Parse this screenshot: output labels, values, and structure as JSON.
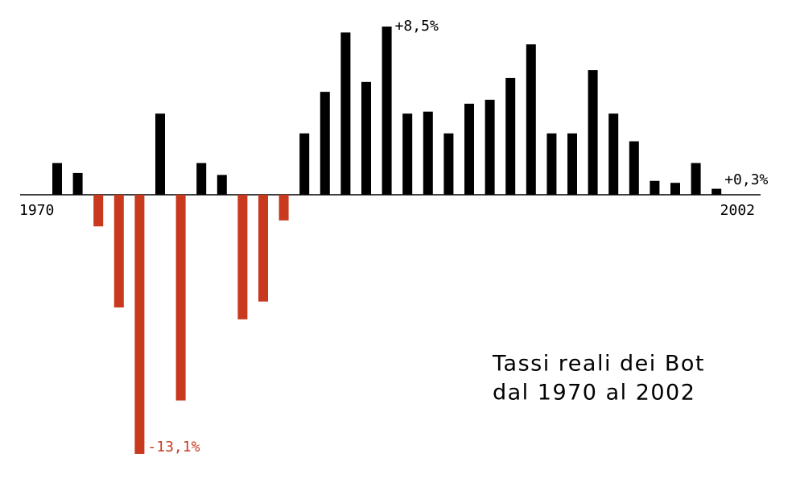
{
  "chart_data": {
    "type": "bar",
    "title": [
      "Tassi reali dei Bot",
      "dal 1970 al 2002"
    ],
    "categories": [
      "1970",
      null,
      null,
      null,
      null,
      null,
      null,
      null,
      null,
      null,
      null,
      null,
      null,
      null,
      null,
      null,
      null,
      null,
      null,
      null,
      null,
      null,
      null,
      null,
      null,
      null,
      null,
      null,
      null,
      null,
      null,
      null,
      "2002"
    ],
    "values": [
      1.6,
      1.1,
      -1.6,
      -5.7,
      -13.1,
      4.1,
      -10.4,
      1.6,
      1.0,
      -6.3,
      -5.4,
      -1.3,
      3.1,
      5.2,
      8.2,
      5.7,
      8.5,
      4.1,
      4.2,
      3.1,
      4.6,
      4.8,
      5.9,
      7.6,
      3.1,
      3.1,
      6.3,
      4.1,
      2.7,
      0.7,
      0.6,
      1.6,
      0.3
    ],
    "value_labels": [
      null,
      null,
      null,
      null,
      "-13,1%",
      null,
      null,
      null,
      null,
      null,
      null,
      null,
      null,
      null,
      null,
      null,
      "+8,5%",
      null,
      null,
      null,
      null,
      null,
      null,
      null,
      null,
      null,
      null,
      null,
      null,
      null,
      null,
      null,
      "+0,3%"
    ],
    "positive_color": "#000000",
    "negative_color": "#c8391e",
    "ylim": [
      -13.1,
      8.5
    ]
  }
}
